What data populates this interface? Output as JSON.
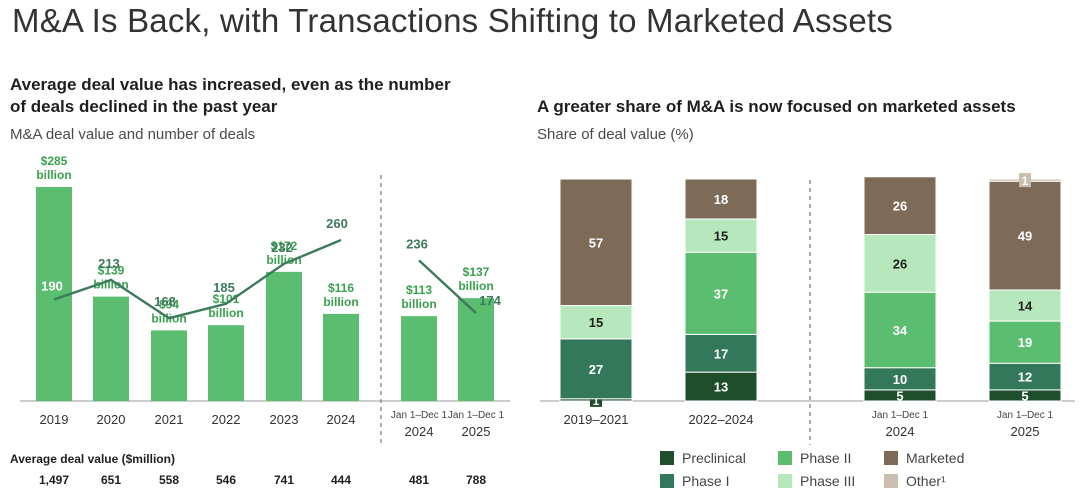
{
  "title": "M&A Is Back, with Transactions Shifting to Marketed Assets",
  "left": {
    "subtitle_line1": "Average deal value has increased, even as the number",
    "subtitle_line2": "of deals declined in the past year",
    "caption": "M&A deal value and number of deals",
    "avg_label": "Average deal value ($million)"
  },
  "right": {
    "subtitle": "A greater share of M&A is now focused on marketed assets",
    "caption": "Share of deal value (%)"
  },
  "legend": [
    {
      "label": "Preclinical",
      "color": "#1e4d2b"
    },
    {
      "label": "Phase II",
      "color": "#5bbd6f"
    },
    {
      "label": "Marketed",
      "color": "#7d6b57"
    },
    {
      "label": "Phase I",
      "color": "#33785a"
    },
    {
      "label": "Phase III",
      "color": "#b6e8bc"
    },
    {
      "label": "Other¹",
      "color": "#c9beb0"
    }
  ],
  "chart_data": [
    {
      "type": "bar",
      "title": "M&A deal value and number of deals",
      "categories": [
        "2019",
        "2020",
        "2021",
        "2022",
        "2023",
        "2024",
        "Jan 1–Dec 1 2024",
        "Jan 1–Dec 1 2025"
      ],
      "category_lines": [
        [
          "2019"
        ],
        [
          "2020"
        ],
        [
          "2021"
        ],
        [
          "2022"
        ],
        [
          "2023"
        ],
        [
          "2024"
        ],
        [
          "Jan 1–Dec 1",
          "2024"
        ],
        [
          "Jan 1–Dec 1",
          "2025"
        ]
      ],
      "series": [
        {
          "name": "M&A deal value ($billion)",
          "type": "bar",
          "values": [
            285,
            139,
            94,
            101,
            172,
            116,
            113,
            137
          ],
          "labels": [
            [
              "$285",
              "billion"
            ],
            [
              "$139",
              "billion"
            ],
            [
              "$94",
              "billion"
            ],
            [
              "$101",
              "billion"
            ],
            [
              "$172",
              "billion"
            ],
            [
              "$116",
              "billion"
            ],
            [
              "$113",
              "billion"
            ],
            [
              "$137",
              "billion"
            ]
          ]
        },
        {
          "name": "Number of deals",
          "type": "line",
          "values": [
            190,
            213,
            168,
            185,
            232,
            260,
            236,
            174
          ],
          "labels": [
            "190",
            "213",
            "168",
            "185",
            "232",
            "260",
            "236",
            "174"
          ]
        }
      ],
      "average_deal_value": [
        "1,497",
        "651",
        "558",
        "546",
        "741",
        "444",
        "481",
        "788"
      ],
      "ylim": [
        0,
        300
      ]
    },
    {
      "type": "bar",
      "stacked": true,
      "title": "Share of deal value (%)",
      "categories": [
        "2019–2021",
        "2022–2024",
        "Jan 1–Dec 1 2024",
        "Jan 1–Dec 1 2025"
      ],
      "category_lines": [
        [
          "2019–2021"
        ],
        [
          "2022–2024"
        ],
        [
          "Jan 1–Dec 1",
          "2024"
        ],
        [
          "Jan 1–Dec 1",
          "2025"
        ]
      ],
      "series": [
        {
          "name": "Preclinical",
          "color": "#1e4d2b",
          "values": [
            1,
            13,
            5,
            5
          ]
        },
        {
          "name": "Phase I",
          "color": "#33785a",
          "values": [
            27,
            17,
            10,
            12
          ]
        },
        {
          "name": "Phase II",
          "color": "#5bbd6f",
          "values": [
            0,
            37,
            34,
            19
          ]
        },
        {
          "name": "Phase III",
          "color": "#b6e8bc",
          "values": [
            15,
            15,
            26,
            14
          ]
        },
        {
          "name": "Marketed",
          "color": "#7d6b57",
          "values": [
            57,
            18,
            26,
            49
          ]
        },
        {
          "name": "Other¹",
          "color": "#c9beb0",
          "values": [
            0,
            0,
            0,
            1
          ]
        }
      ],
      "ylim": [
        0,
        100
      ]
    }
  ]
}
